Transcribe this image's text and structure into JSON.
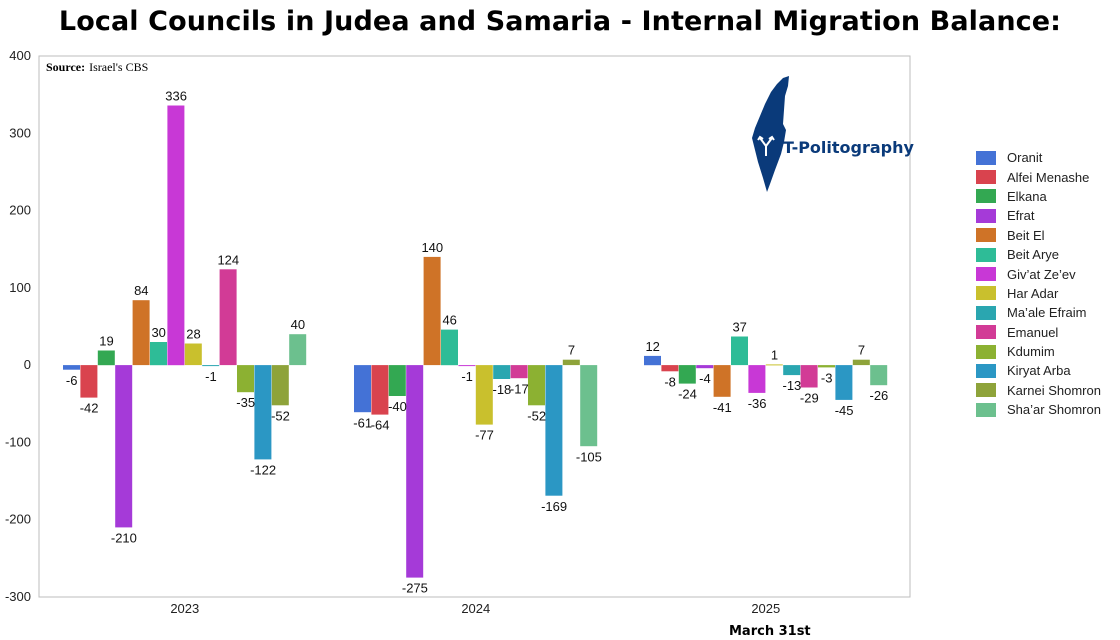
{
  "title": "Local Councils in Judea and Samaria - Internal Migration Balance:",
  "source_label": "Source:",
  "source_value": "Israel's CBS",
  "logo_text": "T-Politography",
  "group_note": "March 31st",
  "chart_data": {
    "type": "bar",
    "categories": [
      "2023",
      "2024",
      "2025"
    ],
    "ylim": [
      -300,
      400
    ],
    "yticks": [
      -300,
      -200,
      -100,
      0,
      100,
      200,
      300,
      400
    ],
    "grid": false,
    "legend_position": "right",
    "series": [
      {
        "name": "Oranit",
        "color": "#4472d6",
        "values": [
          -6,
          -61,
          12
        ]
      },
      {
        "name": "Alfei Menashe",
        "color": "#d9434e",
        "values": [
          -42,
          -64,
          -8
        ]
      },
      {
        "name": "Elkana",
        "color": "#33a852",
        "values": [
          19,
          -40,
          -24
        ]
      },
      {
        "name": "Efrat",
        "color": "#a53ad8",
        "values": [
          -210,
          -275,
          -4
        ]
      },
      {
        "name": "Beit El",
        "color": "#cf7327",
        "values": [
          84,
          140,
          -41
        ]
      },
      {
        "name": "Beit Arye",
        "color": "#2ebc97",
        "values": [
          30,
          46,
          37
        ]
      },
      {
        "name": "Giv’at Ze’ev",
        "color": "#c838d6",
        "values": [
          336,
          -1,
          -36
        ]
      },
      {
        "name": "Har Adar",
        "color": "#c9c02d",
        "values": [
          28,
          -77,
          1
        ]
      },
      {
        "name": "Ma’ale Efraim",
        "color": "#2aa6b0",
        "values": [
          -1,
          -18,
          -13
        ]
      },
      {
        "name": "Emanuel",
        "color": "#d23b96",
        "values": [
          124,
          -17,
          -29
        ]
      },
      {
        "name": "Kdumim",
        "color": "#8cb132",
        "values": [
          -35,
          -52,
          -3
        ]
      },
      {
        "name": "Kiryat Arba",
        "color": "#2b97c4",
        "values": [
          -122,
          -169,
          -45
        ]
      },
      {
        "name": "Karnei Shomron",
        "color": "#8ea33a",
        "values": [
          -52,
          7,
          7
        ]
      },
      {
        "name": "Sha’ar Shomron",
        "color": "#6cc08e",
        "values": [
          40,
          -105,
          -26
        ]
      }
    ]
  }
}
